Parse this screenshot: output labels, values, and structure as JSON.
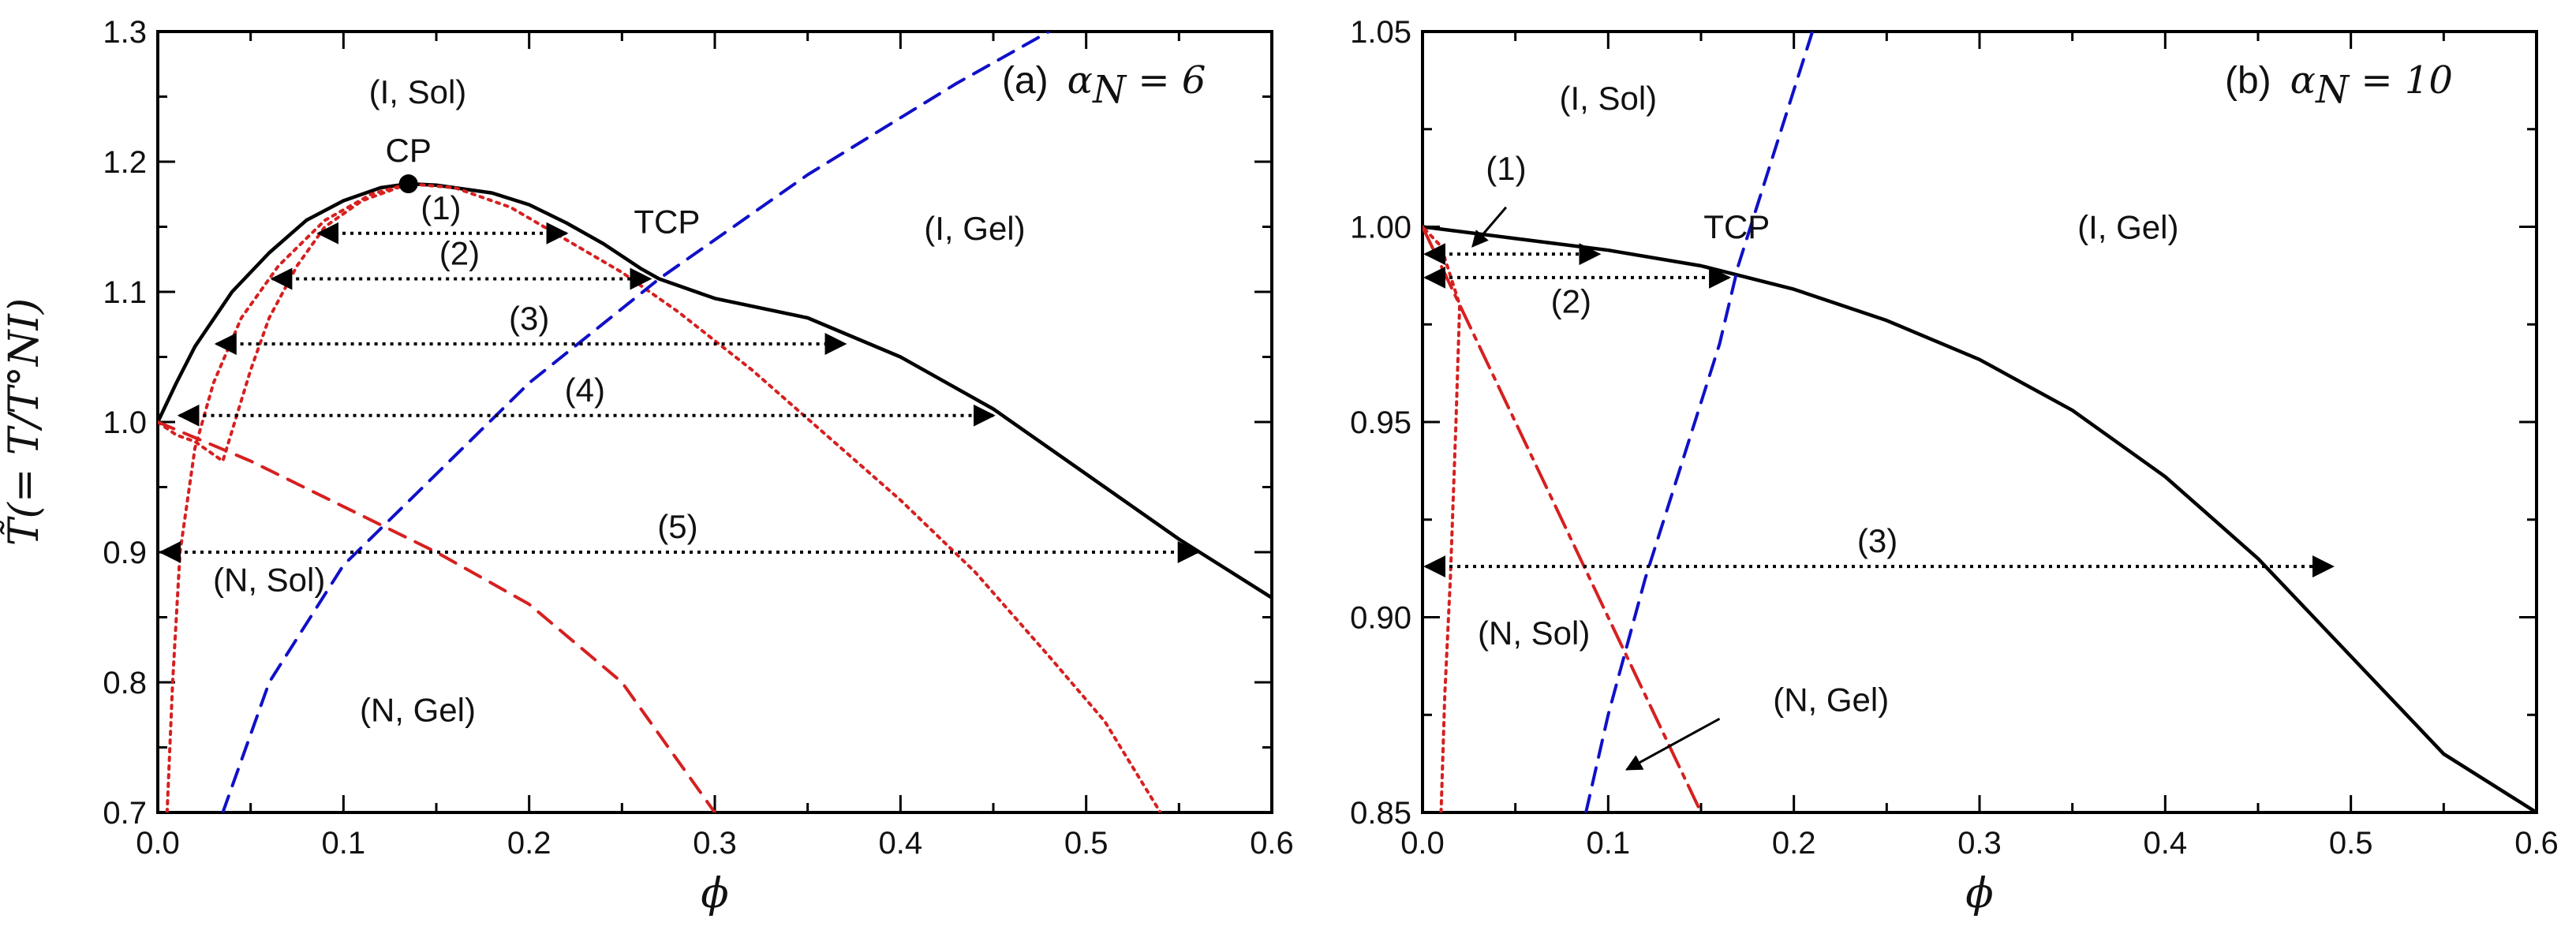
{
  "colors": {
    "binodal": "#000000",
    "spinodal": "#d62020",
    "sol_gel": "#1010c8",
    "ni_line": "#d62020",
    "tie_line": "#000000"
  },
  "chart_data": [
    {
      "type": "line",
      "panel": "(a)",
      "title_prefix": "(a)",
      "title_math": "α",
      "title_sub": "N",
      "title_value": " = 6",
      "xlabel": "ϕ",
      "ylabel": "T̃(= T/T°NI)",
      "xlim": [
        0.0,
        0.6
      ],
      "ylim": [
        0.7,
        1.3
      ],
      "xticks": [
        0.0,
        0.1,
        0.2,
        0.3,
        0.4,
        0.5,
        0.6
      ],
      "xtick_labels": [
        "0.0",
        "0.1",
        "0.2",
        "0.3",
        "0.4",
        "0.5",
        "0.6"
      ],
      "yticks": [
        0.7,
        0.8,
        0.9,
        1.0,
        1.1,
        1.2,
        1.3
      ],
      "ytick_labels": [
        "0.7",
        "0.8",
        "0.9",
        "1.0",
        "1.1",
        "1.2",
        "1.3"
      ],
      "series": [
        {
          "name": "binodal",
          "style": "solid",
          "color": "#000000",
          "points": [
            [
              0.0,
              1.0
            ],
            [
              0.01,
              1.03
            ],
            [
              0.02,
              1.058
            ],
            [
              0.04,
              1.1
            ],
            [
              0.06,
              1.13
            ],
            [
              0.08,
              1.155
            ],
            [
              0.1,
              1.17
            ],
            [
              0.12,
              1.18
            ],
            [
              0.135,
              1.183
            ],
            [
              0.15,
              1.182
            ],
            [
              0.18,
              1.176
            ],
            [
              0.2,
              1.167
            ],
            [
              0.22,
              1.153
            ],
            [
              0.24,
              1.137
            ],
            [
              0.26,
              1.118
            ],
            [
              0.27,
              1.11
            ],
            [
              0.3,
              1.095
            ],
            [
              0.35,
              1.08
            ],
            [
              0.4,
              1.05
            ],
            [
              0.45,
              1.01
            ],
            [
              0.5,
              0.96
            ],
            [
              0.55,
              0.91
            ],
            [
              0.6,
              0.865
            ]
          ]
        },
        {
          "name": "spinodal",
          "style": "dotted",
          "color": "#d62020",
          "points": [
            [
              0.005,
              0.7
            ],
            [
              0.008,
              0.8
            ],
            [
              0.012,
              0.9
            ],
            [
              0.02,
              0.98
            ],
            [
              0.03,
              1.03
            ],
            [
              0.045,
              1.08
            ],
            [
              0.065,
              1.12
            ],
            [
              0.09,
              1.155
            ],
            [
              0.115,
              1.175
            ],
            [
              0.135,
              1.183
            ],
            [
              0.16,
              1.18
            ],
            [
              0.19,
              1.165
            ],
            [
              0.22,
              1.14
            ],
            [
              0.25,
              1.115
            ],
            [
              0.28,
              1.085
            ],
            [
              0.32,
              1.04
            ],
            [
              0.36,
              0.99
            ],
            [
              0.4,
              0.94
            ],
            [
              0.44,
              0.885
            ],
            [
              0.48,
              0.82
            ],
            [
              0.51,
              0.77
            ],
            [
              0.54,
              0.7
            ]
          ]
        },
        {
          "name": "spinodal_inner",
          "style": "dotted",
          "color": "#d62020",
          "points": [
            [
              0.0,
              1.0
            ],
            [
              0.01,
              0.99
            ],
            [
              0.02,
              0.985
            ],
            [
              0.035,
              0.97
            ],
            [
              0.05,
              1.04
            ],
            [
              0.06,
              1.08
            ],
            [
              0.075,
              1.12
            ],
            [
              0.09,
              1.15
            ],
            [
              0.11,
              1.17
            ],
            [
              0.135,
              1.183
            ]
          ]
        },
        {
          "name": "NI_line",
          "style": "dashed",
          "color": "#d62020",
          "points": [
            [
              0.0,
              1.0
            ],
            [
              0.05,
              0.97
            ],
            [
              0.1,
              0.935
            ],
            [
              0.15,
              0.9
            ],
            [
              0.2,
              0.86
            ],
            [
              0.25,
              0.8
            ],
            [
              0.3,
              0.7
            ]
          ]
        },
        {
          "name": "sol_gel",
          "style": "dashed",
          "color": "#1010c8",
          "points": [
            [
              0.035,
              0.7
            ],
            [
              0.06,
              0.8
            ],
            [
              0.1,
              0.89
            ],
            [
              0.15,
              0.96
            ],
            [
              0.2,
              1.03
            ],
            [
              0.27,
              1.11
            ],
            [
              0.35,
              1.19
            ],
            [
              0.43,
              1.26
            ],
            [
              0.48,
              1.3
            ]
          ]
        }
      ],
      "tie_lines": [
        {
          "label": "(1)",
          "x": [
            0.085,
            0.22
          ],
          "y": 1.145
        },
        {
          "label": "(2)",
          "x": [
            0.06,
            0.265
          ],
          "y": 1.11
        },
        {
          "label": "(3)",
          "x": [
            0.03,
            0.37
          ],
          "y": 1.06
        },
        {
          "label": "(4)",
          "x": [
            0.01,
            0.45
          ],
          "y": 1.005
        },
        {
          "label": "(5)",
          "x": [
            0.0,
            0.56
          ],
          "y": 0.9
        }
      ],
      "points": [
        {
          "label": "CP",
          "x": 0.135,
          "y": 1.183,
          "marker": true
        },
        {
          "label": "TCP",
          "x": 0.27,
          "y": 1.115,
          "marker": false
        }
      ],
      "regions": [
        {
          "label": "(I, Sol)",
          "x": 0.14,
          "y": 1.245
        },
        {
          "label": "(I, Gel)",
          "x": 0.44,
          "y": 1.14
        },
        {
          "label": "(N, Sol)",
          "x": 0.06,
          "y": 0.87
        },
        {
          "label": "(N, Gel)",
          "x": 0.14,
          "y": 0.77
        }
      ]
    },
    {
      "type": "line",
      "panel": "(b)",
      "title_prefix": "(b)",
      "title_math": "α",
      "title_sub": "N",
      "title_value": " = 10",
      "xlabel": "ϕ",
      "ylabel": "",
      "xlim": [
        0.0,
        0.6
      ],
      "ylim": [
        0.85,
        1.05
      ],
      "xticks": [
        0.0,
        0.1,
        0.2,
        0.3,
        0.4,
        0.5,
        0.6
      ],
      "xtick_labels": [
        "0.0",
        "0.1",
        "0.2",
        "0.3",
        "0.4",
        "0.5",
        "0.6"
      ],
      "yticks": [
        0.85,
        0.9,
        0.95,
        1.0,
        1.05
      ],
      "ytick_labels": [
        "0.85",
        "0.90",
        "0.95",
        "1.00",
        "1.05"
      ],
      "series": [
        {
          "name": "binodal",
          "style": "solid",
          "color": "#000000",
          "points": [
            [
              0.0,
              1.0
            ],
            [
              0.05,
              0.997
            ],
            [
              0.1,
              0.994
            ],
            [
              0.15,
              0.99
            ],
            [
              0.2,
              0.984
            ],
            [
              0.25,
              0.976
            ],
            [
              0.3,
              0.966
            ],
            [
              0.35,
              0.953
            ],
            [
              0.4,
              0.936
            ],
            [
              0.45,
              0.915
            ],
            [
              0.5,
              0.89
            ],
            [
              0.55,
              0.865
            ],
            [
              0.6,
              0.85
            ]
          ]
        },
        {
          "name": "spinodal",
          "style": "dotted",
          "color": "#d62020",
          "points": [
            [
              0.01,
              0.85
            ],
            [
              0.012,
              0.88
            ],
            [
              0.015,
              0.91
            ],
            [
              0.018,
              0.95
            ],
            [
              0.02,
              0.98
            ],
            [
              0.01,
              0.995
            ],
            [
              0.0,
              1.0
            ]
          ]
        },
        {
          "name": "NI_line",
          "style": "dashdot",
          "color": "#d62020",
          "points": [
            [
              0.0,
              1.0
            ],
            [
              0.02,
              0.98
            ],
            [
              0.05,
              0.95
            ],
            [
              0.08,
              0.92
            ],
            [
              0.1,
              0.9
            ],
            [
              0.12,
              0.88
            ],
            [
              0.15,
              0.85
            ]
          ]
        },
        {
          "name": "sol_gel",
          "style": "dashed",
          "color": "#1010c8",
          "points": [
            [
              0.088,
              0.85
            ],
            [
              0.1,
              0.875
            ],
            [
              0.12,
              0.91
            ],
            [
              0.14,
              0.94
            ],
            [
              0.16,
              0.97
            ],
            [
              0.17,
              0.99
            ],
            [
              0.19,
              1.02
            ],
            [
              0.21,
              1.05
            ]
          ]
        }
      ],
      "tie_lines": [
        {
          "label": "",
          "x": [
            0.0,
            0.095
          ],
          "y": 0.993
        },
        {
          "label": "",
          "x": [
            0.0,
            0.165
          ],
          "y": 0.987
        },
        {
          "label": "(3)",
          "x": [
            0.0,
            0.49
          ],
          "y": 0.913
        }
      ],
      "points": [
        {
          "label": "TCP",
          "x": 0.165,
          "y": 0.987,
          "marker": false
        }
      ],
      "regions": [
        {
          "label": "(I, Sol)",
          "x": 0.1,
          "y": 1.03
        },
        {
          "label": "(I, Gel)",
          "x": 0.38,
          "y": 0.997
        },
        {
          "label": "(N, Sol)",
          "x": 0.06,
          "y": 0.893
        },
        {
          "label": "(2)",
          "x": 0.08,
          "y": 0.978
        },
        {
          "label": "(1)",
          "x": 0.045,
          "y": 1.012
        },
        {
          "label": "(N, Gel)",
          "x": 0.22,
          "y": 0.876
        }
      ]
    }
  ]
}
